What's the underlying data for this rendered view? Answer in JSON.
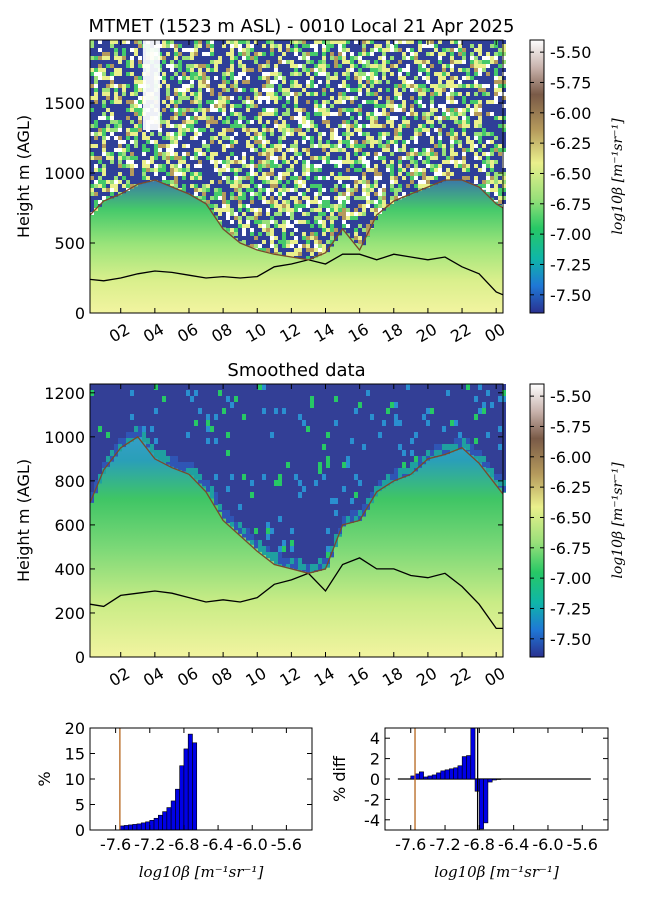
{
  "colorbar": {
    "label": "log10β [m⁻¹sr⁻¹]",
    "ticks": [
      "-5.50",
      "-5.75",
      "-6.00",
      "-6.25",
      "-6.50",
      "-6.75",
      "-7.00",
      "-7.25",
      "-7.50"
    ],
    "range": [
      -7.65,
      -5.4
    ],
    "colormap": [
      "#2a3190",
      "#1f78d6",
      "#0fb6a8",
      "#27c865",
      "#9ae07a",
      "#eaf08c",
      "#b59a5c",
      "#7a5a47",
      "#c9b3ad",
      "#ffffff"
    ]
  },
  "chart_data": [
    {
      "type": "heatmap",
      "title": "MTMET (1523 m ASL) - 0010 Local 21 Apr 2025",
      "xlabel": "",
      "ylabel": "Height m (AGL)",
      "x_tick_labels": [
        "02",
        "04",
        "06",
        "08",
        "10",
        "12",
        "14",
        "16",
        "18",
        "20",
        "22",
        "00"
      ],
      "x_ticks_hours": [
        2,
        4,
        6,
        8,
        10,
        12,
        14,
        16,
        18,
        20,
        22,
        24
      ],
      "xlim_hours": [
        0.2,
        24.4
      ],
      "y_ticks": [
        0,
        500,
        1000,
        1500
      ],
      "ylim": [
        0,
        1950
      ],
      "series": [
        {
          "x": [
            0.2,
            1,
            2,
            3,
            4,
            5,
            6,
            7,
            8,
            9,
            10,
            11,
            12,
            13,
            14,
            15,
            16,
            17,
            18,
            19,
            20,
            21,
            22,
            23,
            24,
            24.4
          ],
          "y": [
            240,
            230,
            250,
            280,
            300,
            290,
            270,
            250,
            260,
            250,
            260,
            330,
            350,
            380,
            350,
            420,
            420,
            380,
            420,
            400,
            380,
            400,
            330,
            280,
            150,
            130
          ]
        },
        {
          "x": [
            0.2,
            1,
            2,
            3,
            4,
            5,
            6,
            7,
            8,
            9,
            10,
            11,
            12,
            13,
            14,
            15,
            16,
            17,
            18,
            19,
            20,
            21,
            22,
            23,
            24,
            24.4
          ],
          "y": [
            700,
            800,
            850,
            920,
            950,
            900,
            850,
            780,
            600,
            500,
            450,
            420,
            400,
            380,
            430,
            600,
            450,
            700,
            800,
            850,
            900,
            950,
            950,
            900,
            780,
            750
          ]
        }
      ]
    },
    {
      "type": "heatmap",
      "title": "Smoothed data",
      "xlabel": "",
      "ylabel": "Height m (AGL)",
      "x_tick_labels": [
        "02",
        "04",
        "06",
        "08",
        "10",
        "12",
        "14",
        "16",
        "18",
        "20",
        "22",
        "00"
      ],
      "x_ticks_hours": [
        2,
        4,
        6,
        8,
        10,
        12,
        14,
        16,
        18,
        20,
        22,
        24
      ],
      "xlim_hours": [
        0.2,
        24.4
      ],
      "y_ticks": [
        0,
        200,
        400,
        600,
        800,
        1000,
        1200
      ],
      "ylim": [
        0,
        1240
      ],
      "series": [
        {
          "x": [
            0.2,
            1,
            2,
            3,
            4,
            5,
            6,
            7,
            8,
            9,
            10,
            11,
            12,
            13,
            14,
            15,
            16,
            17,
            18,
            19,
            20,
            21,
            22,
            23,
            24,
            24.4
          ],
          "y": [
            240,
            230,
            280,
            290,
            300,
            290,
            270,
            250,
            260,
            250,
            270,
            330,
            350,
            380,
            300,
            420,
            450,
            400,
            400,
            370,
            360,
            380,
            320,
            240,
            130,
            130
          ]
        },
        {
          "x": [
            0.2,
            1,
            2,
            3,
            4,
            5,
            6,
            7,
            8,
            9,
            10,
            11,
            12,
            13,
            14,
            15,
            16,
            17,
            18,
            19,
            20,
            21,
            22,
            23,
            24,
            24.4
          ],
          "y": [
            700,
            850,
            950,
            1000,
            900,
            860,
            830,
            750,
            620,
            550,
            480,
            420,
            400,
            380,
            400,
            600,
            620,
            750,
            800,
            830,
            900,
            920,
            950,
            880,
            780,
            740
          ]
        }
      ]
    },
    {
      "type": "bar",
      "title": "",
      "xlabel": "log10β [m⁻¹sr⁻¹]",
      "ylabel": "%",
      "x_tick_labels": [
        "-7.6",
        "-7.2",
        "-6.8",
        "-6.4",
        "-6.0",
        "-5.6"
      ],
      "x_ticks": [
        -7.6,
        -7.2,
        -6.8,
        -6.4,
        -6.0,
        -5.6
      ],
      "xlim": [
        -7.9,
        -5.3
      ],
      "ylim": [
        0,
        20
      ],
      "y_ticks": [
        0,
        5,
        10,
        15,
        20
      ],
      "bin_width": 0.05,
      "x": [
        -7.525,
        -7.475,
        -7.425,
        -7.375,
        -7.325,
        -7.275,
        -7.225,
        -7.175,
        -7.125,
        -7.075,
        -7.025,
        -6.975,
        -6.925,
        -6.875,
        -6.825,
        -6.775,
        -6.725,
        -6.675
      ],
      "values": [
        0.8,
        0.9,
        1.0,
        1.1,
        1.2,
        1.4,
        1.6,
        1.9,
        2.3,
        2.9,
        3.6,
        4.4,
        5.7,
        8.0,
        12.6,
        15.9,
        18.8,
        17.1
      ],
      "vline": -7.55
    },
    {
      "type": "bar",
      "title": "",
      "xlabel": "log10β [m⁻¹sr⁻¹]",
      "ylabel": "% diff",
      "x_tick_labels": [
        "-7.6",
        "-7.2",
        "-6.8",
        "-6.4",
        "-6.0",
        "-5.6"
      ],
      "x_ticks": [
        -7.6,
        -7.2,
        -6.8,
        -6.4,
        -6.0,
        -5.6
      ],
      "xlim": [
        -7.9,
        -5.3
      ],
      "ylim": [
        -5,
        5
      ],
      "y_ticks": [
        4,
        2,
        0,
        -2,
        -4
      ],
      "bin_width": 0.05,
      "x": [
        -7.575,
        -7.525,
        -7.475,
        -7.425,
        -7.375,
        -7.325,
        -7.275,
        -7.225,
        -7.175,
        -7.125,
        -7.075,
        -7.025,
        -6.975,
        -6.925,
        -6.875,
        -6.825,
        -6.775,
        -6.725,
        -6.675,
        -6.625,
        -6.575
      ],
      "values": [
        0.3,
        0.5,
        0.7,
        0.2,
        0.3,
        0.4,
        0.6,
        0.8,
        0.9,
        1.0,
        1.1,
        1.3,
        2.2,
        2.3,
        5.0,
        -1.2,
        -4.9,
        -4.3,
        -0.3,
        -0.1,
        -0.05
      ],
      "zero_line": [
        -7.75,
        -5.5
      ],
      "vlines": [
        -7.55,
        -6.82
      ]
    }
  ]
}
